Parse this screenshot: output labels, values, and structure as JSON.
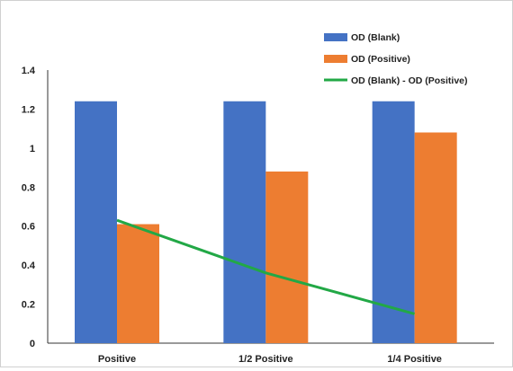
{
  "chart_data": {
    "type": "bar",
    "categories": [
      "Positive",
      "1/2 Positive",
      "1/4 Positive"
    ],
    "series": [
      {
        "name": "OD (Blank)",
        "kind": "bar",
        "color": "#4472C4",
        "values": [
          1.24,
          1.24,
          1.24
        ]
      },
      {
        "name": "OD (Positive)",
        "kind": "bar",
        "color": "#ED7D31",
        "values": [
          0.61,
          0.88,
          1.08
        ]
      },
      {
        "name": "OD (Blank) - OD (Positive)",
        "kind": "line",
        "color": "#22A846",
        "values": [
          0.63,
          0.36,
          0.15
        ]
      }
    ],
    "y_ticks": [
      "0",
      "0.2",
      "0.4",
      "0.6",
      "0.8",
      "1",
      "1.2",
      "1.4"
    ],
    "ylim": [
      0,
      1.4
    ],
    "grid": false,
    "legend_position": "top-right"
  }
}
